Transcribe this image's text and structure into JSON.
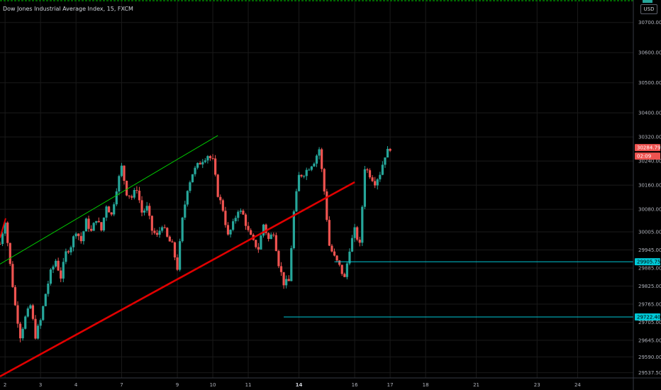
{
  "chart": {
    "title": "Dow Jones Industrial Average Index, 15, FXCM",
    "currency": "USD",
    "colors": {
      "background": "#000000",
      "up": "#26a69a",
      "down": "#ef5350",
      "grid": "#1a1a1a",
      "support_channel": "#e00000",
      "upper_channel": "#00cc00",
      "horizontal_levels": "#00c8d6",
      "price_badge": "#ef5350"
    }
  },
  "chart_data": {
    "type": "candlestick",
    "title": "Dow Jones Industrial Average Index, 15, FXCM",
    "ylim": [
      29520,
      30770
    ],
    "xlim": [
      0,
      62.5
    ],
    "y_tick_labels": [
      "30700.00",
      "30600.00",
      "30500.00",
      "30400.00",
      "30320.00",
      "30240.00",
      "30160.00",
      "30080.00",
      "30005.00",
      "29945.00",
      "29885.00",
      "29825.00",
      "29765.00",
      "29705.00",
      "29645.00",
      "29590.00",
      "29537.50"
    ],
    "y_ticks": [
      30700,
      30600,
      30500,
      30400,
      30320,
      30240,
      30160,
      30080,
      30005,
      29945,
      29885,
      29825,
      29765,
      29705,
      29645,
      29590,
      29537.5
    ],
    "x_tick_labels": [
      "2",
      "3",
      "4",
      "7",
      "9",
      "10",
      "11",
      "14",
      "16",
      "17",
      "18",
      "21",
      "23",
      "24"
    ],
    "x_ticks": [
      0.5,
      4,
      7.5,
      12,
      17.5,
      21,
      24.5,
      29.5,
      35,
      38.5,
      42,
      47,
      53,
      57
    ],
    "last_price": "30284.79",
    "countdown": "02:09",
    "hidden_label_fragment": "30",
    "level_labels": [
      "29905.75",
      "29722.40"
    ],
    "price_path": [
      [
        0.0,
        29965
      ],
      [
        0.5,
        30045
      ],
      [
        1.0,
        29895
      ],
      [
        1.5,
        29760
      ],
      [
        2.0,
        29660
      ],
      [
        2.5,
        29720
      ],
      [
        3.0,
        29760
      ],
      [
        3.5,
        29660
      ],
      [
        4.0,
        29710
      ],
      [
        4.5,
        29800
      ],
      [
        5.0,
        29870
      ],
      [
        5.5,
        29910
      ],
      [
        6.0,
        29855
      ],
      [
        6.5,
        29935
      ],
      [
        7.0,
        29960
      ],
      [
        7.5,
        30010
      ],
      [
        8.0,
        29975
      ],
      [
        8.5,
        30040
      ],
      [
        9.0,
        30005
      ],
      [
        9.5,
        30050
      ],
      [
        10.0,
        30010
      ],
      [
        10.5,
        30095
      ],
      [
        11.0,
        30060
      ],
      [
        11.5,
        30150
      ],
      [
        12.0,
        30220
      ],
      [
        12.5,
        30135
      ],
      [
        13.0,
        30120
      ],
      [
        13.5,
        30150
      ],
      [
        14.0,
        30070
      ],
      [
        14.5,
        30085
      ],
      [
        15.0,
        30010
      ],
      [
        15.5,
        29990
      ],
      [
        16.0,
        30030
      ],
      [
        16.5,
        29985
      ],
      [
        17.0,
        29960
      ],
      [
        17.5,
        29885
      ],
      [
        18.0,
        30045
      ],
      [
        18.5,
        30150
      ],
      [
        19.0,
        30200
      ],
      [
        19.5,
        30225
      ],
      [
        20.0,
        30245
      ],
      [
        20.5,
        30260
      ],
      [
        21.0,
        30240
      ],
      [
        21.5,
        30130
      ],
      [
        22.0,
        30080
      ],
      [
        22.5,
        29990
      ],
      [
        23.0,
        30030
      ],
      [
        23.5,
        30080
      ],
      [
        24.0,
        30060
      ],
      [
        24.5,
        30005
      ],
      [
        25.0,
        29970
      ],
      [
        25.5,
        29950
      ],
      [
        26.0,
        30030
      ],
      [
        26.5,
        29980
      ],
      [
        27.0,
        30005
      ],
      [
        27.5,
        29900
      ],
      [
        28.0,
        29835
      ],
      [
        28.5,
        29840
      ],
      [
        29.0,
        30070
      ],
      [
        29.5,
        30190
      ],
      [
        30.0,
        30200
      ],
      [
        30.5,
        30220
      ],
      [
        31.0,
        30240
      ],
      [
        31.5,
        30280
      ],
      [
        32.0,
        30140
      ],
      [
        32.5,
        29960
      ],
      [
        33.0,
        29920
      ],
      [
        33.5,
        29890
      ],
      [
        34.0,
        29850
      ],
      [
        34.5,
        29950
      ],
      [
        35.0,
        30010
      ],
      [
        35.5,
        29960
      ],
      [
        36.0,
        30220
      ],
      [
        36.5,
        30195
      ],
      [
        37.0,
        30170
      ],
      [
        37.5,
        30200
      ],
      [
        38.0,
        30260
      ],
      [
        38.5,
        30284.79
      ]
    ],
    "candle_step": 0.25,
    "candle_range": [
      0.0,
      38.5
    ],
    "series": [
      {
        "name": "",
        "type": "trendline",
        "start": [
          0.0,
          29525
        ],
        "end": [
          35.0,
          30170
        ],
        "color": "red"
      },
      {
        "name": "",
        "type": "trendline",
        "start": [
          0.0,
          29898
        ],
        "end": [
          21.5,
          30325
        ],
        "color": "green"
      },
      {
        "name": "",
        "type": "hline",
        "y": 29905.75,
        "x_start": 33.0,
        "color": "cyan"
      },
      {
        "name": "",
        "type": "hline",
        "y": 29722.4,
        "x_start": 28.0,
        "color": "cyan"
      }
    ]
  }
}
